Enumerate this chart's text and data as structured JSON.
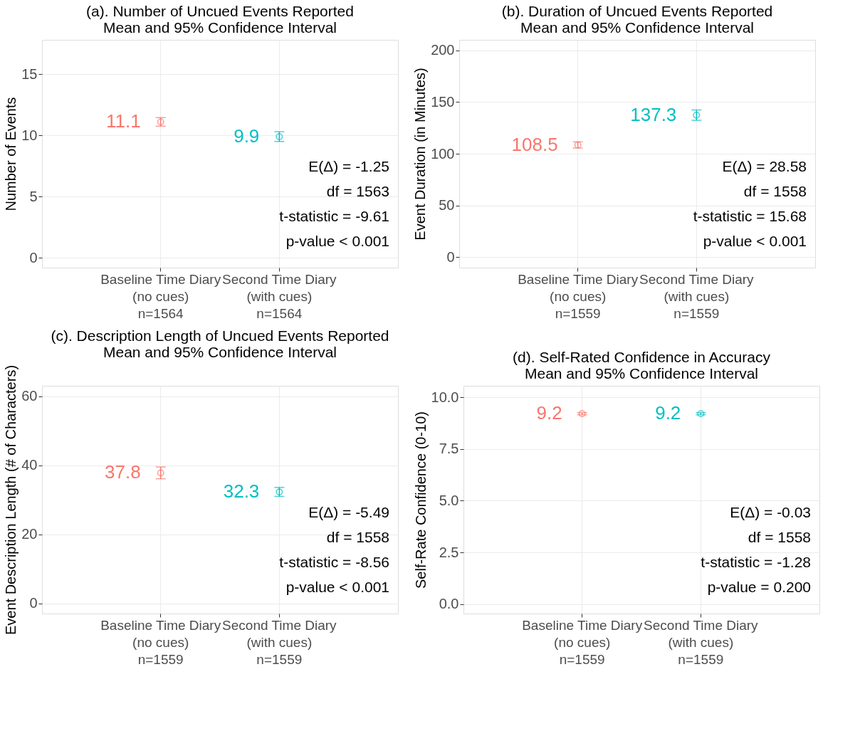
{
  "chart_data": [
    {
      "type": "scatter",
      "title": "(a). Number of Uncued Events Reported",
      "subtitle": "Mean and 95% Confidence Interval",
      "ylabel": "Number of Events",
      "categories": [
        "Baseline Time Diary\n(no cues)\nn=1564",
        "Second Time Diary\n(with cues)\nn=1564"
      ],
      "values": [
        11.1,
        9.9
      ],
      "errors": [
        0.35,
        0.4
      ],
      "colors": [
        "#f8766d",
        "#00bfc4"
      ],
      "ylim": [
        -0.8,
        17.8
      ],
      "yticks": [
        0,
        5,
        10,
        15
      ],
      "grid": true,
      "marker": "circle",
      "data_labels": true,
      "annotations": [
        "E(Δ) = -1.25",
        "df = 1563",
        "t-statistic = -9.61",
        "p-value < 0.001"
      ]
    },
    {
      "type": "scatter",
      "title": "(b). Duration of Uncued Events Reported",
      "subtitle": "Mean and 95% Confidence Interval",
      "ylabel": "Event Duration (in Minutes)",
      "categories": [
        "Baseline Time Diary\n(no cues)\nn=1559",
        "Second Time Diary\n(with cues)\nn=1559"
      ],
      "values": [
        108.5,
        137.3
      ],
      "errors": [
        3,
        5
      ],
      "colors": [
        "#f8766d",
        "#00bfc4"
      ],
      "ylim": [
        -10,
        210
      ],
      "yticks": [
        0,
        50,
        100,
        150,
        200
      ],
      "grid": true,
      "marker": "circle",
      "data_labels": true,
      "annotations": [
        "E(Δ) = 28.58",
        "df = 1558",
        "t-statistic = 15.68",
        "p-value < 0.001"
      ]
    },
    {
      "type": "scatter",
      "title": "(c). Description Length of Uncued Events Reported",
      "subtitle": "Mean and 95% Confidence Interval",
      "ylabel": "Event Description Length (# of Characters)",
      "categories": [
        "Baseline Time Diary\n(no cues)\nn=1559",
        "Second Time Diary\n(with cues)\nn=1559"
      ],
      "values": [
        37.8,
        32.3
      ],
      "errors": [
        1.7,
        1.3
      ],
      "colors": [
        "#f8766d",
        "#00bfc4"
      ],
      "ylim": [
        -2.9,
        63
      ],
      "yticks": [
        0,
        20,
        40,
        60
      ],
      "grid": true,
      "marker": "circle",
      "data_labels": true,
      "annotations": [
        "E(Δ) = -5.49",
        "df = 1558",
        "t-statistic = -8.56",
        "p-value < 0.001"
      ]
    },
    {
      "type": "scatter",
      "title": "(d). Self-Rated Confidence in Accuracy",
      "subtitle": "Mean and 95% Confidence Interval",
      "ylabel": "Self-Rate Confidence (0-10)",
      "categories": [
        "Baseline Time Diary\n(no cues)\nn=1559",
        "Second Time Diary\n(with cues)\nn=1559"
      ],
      "values": [
        9.2,
        9.2
      ],
      "errors": [
        0.05,
        0.05
      ],
      "colors": [
        "#f8766d",
        "#00bfc4"
      ],
      "ylim": [
        -0.45,
        10.55
      ],
      "yticks": [
        {
          "value": 0,
          "label": "0.0"
        },
        2.5,
        {
          "value": 5,
          "label": "5.0"
        },
        7.5,
        {
          "value": 10,
          "label": "10.0"
        }
      ],
      "grid": true,
      "marker": "circle",
      "data_labels": true,
      "annotations": [
        "E(Δ) = -0.03",
        "df = 1558",
        "t-statistic = -1.28",
        "p-value = 0.200"
      ]
    }
  ]
}
